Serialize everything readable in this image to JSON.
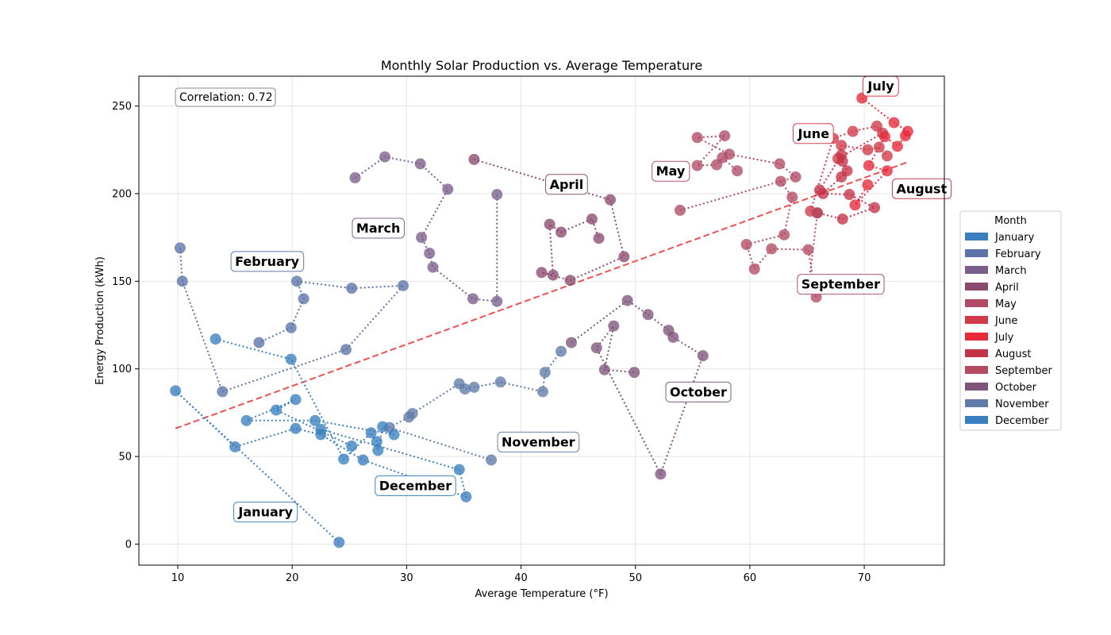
{
  "chart_data": {
    "type": "scatter",
    "title": "Monthly Solar Production vs. Average Temperature",
    "xlabel": "Average Temperature (°F)",
    "ylabel": "Energy Production (kWh)",
    "xlim": [
      6.6,
      77.0
    ],
    "ylim": [
      -12,
      267
    ],
    "x_ticks": [
      10,
      20,
      30,
      40,
      50,
      60,
      70
    ],
    "y_ticks": [
      0,
      50,
      100,
      150,
      200,
      250
    ],
    "grid": true,
    "legend": {
      "title": "Month",
      "placement": "right"
    },
    "annotation": "Correlation: 0.72",
    "trendline": {
      "x": [
        9.8,
        73.8
      ],
      "y": [
        66,
        218
      ],
      "color": "#f03c3c",
      "style": "dashed"
    },
    "series": [
      {
        "name": "January",
        "color": "#3a7ebf",
        "points": [
          [
            24.1,
            1
          ],
          [
            9.8,
            87.5
          ],
          [
            15.0,
            55.5
          ],
          [
            20.3,
            66
          ],
          [
            22.5,
            62.5
          ],
          [
            26.2,
            48
          ],
          [
            35.2,
            27
          ],
          [
            34.6,
            42.5
          ],
          [
            22.5,
            65.5
          ]
        ],
        "label": "January",
        "label_at": [
          15.3,
          18.5
        ]
      },
      {
        "name": "February",
        "color": "#5b73a8",
        "points": [
          [
            10.2,
            169
          ],
          [
            10.4,
            150
          ],
          [
            13.9,
            87
          ],
          [
            24.7,
            111
          ],
          [
            29.7,
            147.5
          ],
          [
            25.2,
            146
          ],
          [
            20.4,
            150
          ],
          [
            21.0,
            140
          ],
          [
            19.9,
            123.5
          ],
          [
            17.1,
            115
          ]
        ],
        "label": "February",
        "label_at": [
          15.0,
          161.5
        ]
      },
      {
        "name": "March",
        "color": "#7a5e8c",
        "points": [
          [
            25.5,
            209
          ],
          [
            28.1,
            221
          ],
          [
            31.2,
            217
          ],
          [
            33.6,
            202.5
          ],
          [
            31.3,
            175
          ],
          [
            32.0,
            166
          ],
          [
            32.3,
            158
          ],
          [
            35.8,
            140
          ],
          [
            37.9,
            138.5
          ],
          [
            37.9,
            199.5
          ]
        ],
        "label": "March",
        "label_at": [
          25.6,
          180.5
        ]
      },
      {
        "name": "April",
        "color": "#8a4a6f",
        "points": [
          [
            35.9,
            219.5
          ],
          [
            47.8,
            196.5
          ],
          [
            49.0,
            164
          ],
          [
            44.3,
            150.5
          ],
          [
            41.8,
            155
          ],
          [
            42.8,
            153.5
          ],
          [
            42.5,
            182.5
          ],
          [
            43.5,
            178
          ],
          [
            46.2,
            185.5
          ],
          [
            46.8,
            174.5
          ]
        ],
        "label": "April",
        "label_at": [
          42.5,
          205.5
        ]
      },
      {
        "name": "May",
        "color": "#b04a66",
        "points": [
          [
            53.9,
            190.5
          ],
          [
            64.0,
            209.5
          ],
          [
            62.6,
            217
          ],
          [
            58.2,
            222.5
          ],
          [
            55.4,
            232
          ],
          [
            57.8,
            233
          ],
          [
            55.4,
            216
          ],
          [
            57.1,
            216.5
          ],
          [
            57.6,
            220.5
          ],
          [
            58.9,
            213
          ]
        ],
        "label": "May",
        "label_at": [
          51.8,
          213
        ]
      },
      {
        "name": "June",
        "color": "#d03a48",
        "points": [
          [
            65.3,
            190
          ],
          [
            67.3,
            231.5
          ],
          [
            69.0,
            235.5
          ],
          [
            71.1,
            238.5
          ],
          [
            71.6,
            234.5
          ],
          [
            67.7,
            220
          ],
          [
            68.0,
            227.5
          ],
          [
            70.3,
            225
          ],
          [
            71.3,
            226.5
          ],
          [
            72.0,
            221.5
          ]
        ],
        "label": "June",
        "label_at": [
          64.2,
          234.5
        ]
      },
      {
        "name": "July",
        "color": "#e62a3c",
        "points": [
          [
            69.8,
            254.5
          ],
          [
            72.6,
            240.5
          ],
          [
            73.8,
            235.5
          ],
          [
            73.6,
            233
          ],
          [
            72.9,
            227
          ],
          [
            71.8,
            232.5
          ],
          [
            70.4,
            216
          ],
          [
            72.0,
            213
          ],
          [
            69.2,
            193.5
          ],
          [
            70.3,
            205
          ]
        ],
        "label": "July",
        "label_at": [
          70.3,
          261.5
        ]
      },
      {
        "name": "August",
        "color": "#c43248",
        "points": [
          [
            66.1,
            202
          ],
          [
            68.0,
            222
          ],
          [
            68.1,
            218.5
          ],
          [
            68.5,
            213
          ],
          [
            68.0,
            209.5
          ],
          [
            66.4,
            200
          ],
          [
            68.7,
            199.5
          ],
          [
            70.9,
            192
          ],
          [
            68.1,
            185.5
          ],
          [
            65.9,
            189
          ]
        ],
        "label": "August",
        "label_at": [
          72.8,
          203
        ]
      },
      {
        "name": "September",
        "color": "#b24a62",
        "points": [
          [
            62.7,
            207
          ],
          [
            63.7,
            198
          ],
          [
            63.0,
            176.5
          ],
          [
            59.7,
            171
          ],
          [
            60.4,
            157
          ],
          [
            61.9,
            168.5
          ],
          [
            65.1,
            168
          ],
          [
            65.8,
            141
          ],
          [
            65.1,
            145.5
          ],
          [
            65.9,
            189
          ]
        ],
        "label": "September",
        "label_at": [
          64.5,
          148.5
        ]
      },
      {
        "name": "October",
        "color": "#7e5478",
        "points": [
          [
            44.4,
            115
          ],
          [
            49.3,
            139
          ],
          [
            51.1,
            131
          ],
          [
            52.9,
            122
          ],
          [
            53.3,
            118
          ],
          [
            55.9,
            107.5
          ],
          [
            52.2,
            40
          ],
          [
            46.6,
            112
          ],
          [
            48.1,
            124.5
          ],
          [
            47.3,
            99.5
          ],
          [
            49.9,
            98
          ]
        ],
        "label": "October",
        "label_at": [
          53.0,
          87
        ]
      },
      {
        "name": "November",
        "color": "#607ba8",
        "points": [
          [
            43.5,
            110
          ],
          [
            42.1,
            98
          ],
          [
            41.9,
            87
          ],
          [
            38.2,
            92.5
          ],
          [
            35.9,
            89.5
          ],
          [
            35.1,
            88.5
          ],
          [
            34.6,
            91.5
          ],
          [
            30.5,
            74.5
          ],
          [
            30.2,
            72.5
          ],
          [
            28.5,
            66.5
          ],
          [
            37.4,
            48
          ]
        ],
        "label": "November",
        "label_at": [
          38.3,
          58.5
        ]
      },
      {
        "name": "December",
        "color": "#3a80c0",
        "points": [
          [
            13.3,
            117
          ],
          [
            19.9,
            105.5
          ],
          [
            24.5,
            48.5
          ],
          [
            26.9,
            63.5
          ],
          [
            27.4,
            58.5
          ],
          [
            27.5,
            53.5
          ],
          [
            27.9,
            67
          ],
          [
            28.9,
            62.5
          ],
          [
            22.0,
            70.5
          ],
          [
            16.0,
            70.5
          ],
          [
            20.3,
            82.5
          ],
          [
            18.6,
            76.5
          ],
          [
            25.2,
            56
          ]
        ],
        "label": "December",
        "label_at": [
          27.6,
          33.5
        ]
      }
    ]
  }
}
